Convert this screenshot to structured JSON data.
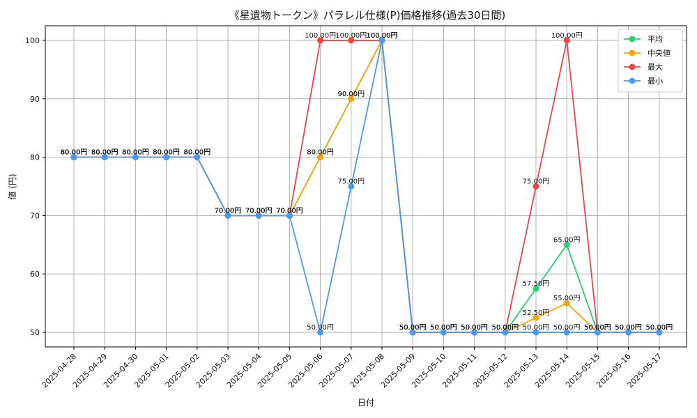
{
  "chart_data": {
    "type": "line",
    "title": "《星遺物トークン》パラレル仕様(P)価格推移(過去30日間)",
    "xlabel": "日付",
    "ylabel": "値 (円)",
    "ylim": [
      47.5,
      102.5
    ],
    "yticks": [
      50,
      60,
      70,
      80,
      90,
      100
    ],
    "grid": true,
    "legend_position": "top-right",
    "value_suffix": "円",
    "categories": [
      "2025-04-28",
      "2025-04-29",
      "2025-04-30",
      "2025-05-01",
      "2025-05-02",
      "2025-05-03",
      "2025-05-04",
      "2025-05-05",
      "2025-05-06",
      "2025-05-07",
      "2025-05-08",
      "2025-05-09",
      "2025-05-10",
      "2025-05-11",
      "2025-05-12",
      "2025-05-13",
      "2025-05-14",
      "2025-05-15",
      "2025-05-16",
      "2025-05-17"
    ],
    "series": [
      {
        "name": "平均",
        "color": "#2ecc71",
        "values": [
          80,
          80,
          80,
          80,
          80,
          70,
          70,
          70,
          80,
          90,
          100,
          50,
          50,
          50,
          50,
          57.5,
          65,
          50,
          50,
          50
        ]
      },
      {
        "name": "中央値",
        "color": "#f5a40c",
        "values": [
          80,
          80,
          80,
          80,
          80,
          70,
          70,
          70,
          80,
          90,
          100,
          50,
          50,
          50,
          50,
          52.5,
          55,
          50,
          50,
          50
        ]
      },
      {
        "name": "最大",
        "color": "#ef4444",
        "values": [
          80,
          80,
          80,
          80,
          80,
          70,
          70,
          70,
          100,
          100,
          100,
          50,
          50,
          50,
          50,
          75,
          100,
          50,
          50,
          50
        ]
      },
      {
        "name": "最小",
        "color": "#4a9af2",
        "values": [
          80,
          80,
          80,
          80,
          80,
          70,
          70,
          70,
          50,
          75,
          100,
          50,
          50,
          50,
          50,
          50,
          50,
          50,
          50,
          50
        ]
      }
    ]
  }
}
